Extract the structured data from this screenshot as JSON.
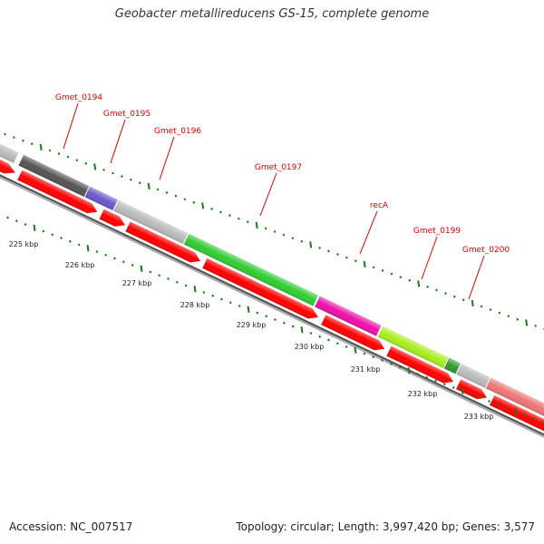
{
  "map": {
    "title": "Geobacter metallireducens GS-15, complete genome",
    "accession": "Accession: NC_007517",
    "stats": "Topology: circular; Length: 3,997,420 bp; Genes: 3,577"
  },
  "colors": {
    "cds_red": "#ff0000",
    "backbone": "#777777",
    "tick_green": "#1a7a1a",
    "label_red": "#e00000"
  },
  "gene_labels": [
    {
      "name": "Gmet_0194"
    },
    {
      "name": "Gmet_0195"
    },
    {
      "name": "Gmet_0196"
    },
    {
      "name": "Gmet_0197"
    },
    {
      "name": "recA"
    },
    {
      "name": "Gmet_0199"
    },
    {
      "name": "Gmet_0200"
    }
  ],
  "kbp_labels": [
    "225 kbp",
    "226 kbp",
    "227 kbp",
    "228 kbp",
    "229 kbp",
    "230 kbp",
    "231 kbp",
    "232 kbp",
    "233 kbp"
  ],
  "cog_segments": [
    {
      "gene": "left-edge",
      "color": "#bbbbbb"
    },
    {
      "gene": "Gmet_0194",
      "color": "#555555"
    },
    {
      "gene": "Gmet_0195",
      "color": "#6a5acd"
    },
    {
      "gene": "Gmet_0196",
      "color": "#bbbbbb"
    },
    {
      "gene": "Gmet_0197",
      "color": "#33cc33"
    },
    {
      "gene": "recA",
      "color": "#ee11aa"
    },
    {
      "gene": "Gmet_0199",
      "color": "#aaee22"
    },
    {
      "gene": "Gmet_0199-b",
      "color": "#339933"
    },
    {
      "gene": "Gmet_0200-gap",
      "color": "#bbbbbb"
    },
    {
      "gene": "Gmet_0200",
      "color": "#ee7777"
    }
  ]
}
